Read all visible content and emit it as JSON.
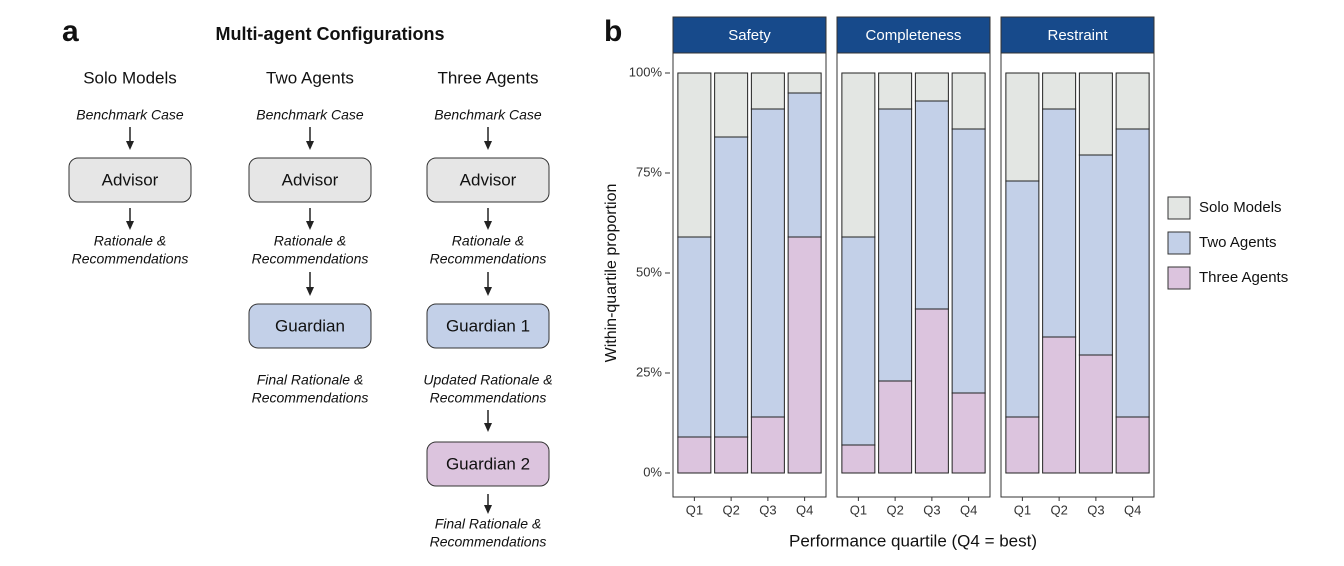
{
  "panel_a": {
    "label": "a",
    "title": "Multi-agent Configurations",
    "columns": [
      {
        "header": "Solo Models",
        "steps": [
          "Benchmark Case",
          "Advisor",
          [
            "Rationale &",
            "Recommendations"
          ]
        ]
      },
      {
        "header": "Two Agents",
        "steps": [
          "Benchmark Case",
          "Advisor",
          [
            "Rationale &",
            "Recommendations"
          ],
          "Guardian",
          [
            "Final Rationale &",
            "Recommendations"
          ]
        ]
      },
      {
        "header": "Three Agents",
        "steps": [
          "Benchmark Case",
          "Advisor",
          [
            "Rationale &",
            "Recommendations"
          ],
          "Guardian 1",
          [
            "Updated Rationale &",
            "Recommendations"
          ],
          "Guardian 2",
          [
            "Final Rationale &",
            "Recommendations"
          ]
        ]
      }
    ]
  },
  "chart_data": {
    "type": "bar",
    "stacked": true,
    "panel_label": "b",
    "y_label": "Within-quartile proportion",
    "x_label": "Performance quartile (Q4 = best)",
    "facets": [
      "Safety",
      "Completeness",
      "Restraint"
    ],
    "facet_color": "#174a8b",
    "categories": [
      "Q1",
      "Q2",
      "Q3",
      "Q4"
    ],
    "ylim": [
      0,
      100
    ],
    "yticks": [
      {
        "value": 0,
        "label": "0%"
      },
      {
        "value": 25,
        "label": "25%"
      },
      {
        "value": 50,
        "label": "50%"
      },
      {
        "value": 75,
        "label": "75%"
      },
      {
        "value": 100,
        "label": "100%"
      }
    ],
    "grid": false,
    "legend": "right",
    "series": [
      {
        "name": "Solo Models",
        "color": "#e3e6e3",
        "values": [
          [
            41,
            16,
            9,
            5
          ],
          [
            41,
            9,
            7,
            14
          ],
          [
            27,
            9,
            20.5,
            14
          ]
        ]
      },
      {
        "name": "Two Agents",
        "color": "#c3d0e8",
        "values": [
          [
            50,
            75,
            77,
            36
          ],
          [
            52,
            68,
            52,
            66
          ],
          [
            59,
            57,
            50,
            72
          ]
        ]
      },
      {
        "name": "Three Agents",
        "color": "#dcc4de",
        "values": [
          [
            9,
            9,
            14,
            59
          ],
          [
            7,
            23,
            41,
            20
          ],
          [
            14,
            34,
            29.5,
            14
          ]
        ]
      }
    ]
  }
}
